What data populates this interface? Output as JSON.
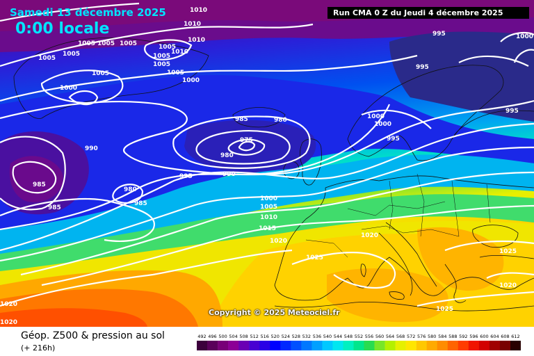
{
  "header": {
    "date": "Samedi 13 décembre 2025",
    "time": "0:00 locale",
    "run": "Run CMA 0 Z du Jeudi 4 décembre 2025"
  },
  "copyright": "Copyright © 2025 Meteociel.fr",
  "footer": {
    "title": "Géop. Z500 & pression au sol",
    "subtitle": "(+ 216h)"
  },
  "colorbar": {
    "ticks": [
      "492",
      "496",
      "500",
      "504",
      "508",
      "512",
      "516",
      "520",
      "524",
      "528",
      "532",
      "536",
      "540",
      "544",
      "548",
      "552",
      "556",
      "560",
      "564",
      "568",
      "572",
      "576",
      "580",
      "584",
      "588",
      "592",
      "596",
      "600",
      "604",
      "608",
      "612"
    ],
    "colors": [
      "#3c003c",
      "#5a005a",
      "#780078",
      "#8c0096",
      "#6a00b4",
      "#4800d2",
      "#2a00e6",
      "#0000ff",
      "#0028ff",
      "#0050ff",
      "#0078ff",
      "#00a0ff",
      "#00c8ff",
      "#00e6f0",
      "#00f0c0",
      "#00e68c",
      "#28dc50",
      "#78e628",
      "#b4f000",
      "#e6f000",
      "#ffe600",
      "#ffc800",
      "#ffaa00",
      "#ff8c00",
      "#ff6400",
      "#ff3c00",
      "#f01400",
      "#d20000",
      "#a00000",
      "#780000",
      "#280000"
    ]
  },
  "isobar_labels": [
    {
      "text": "1010"
    },
    {
      "text": "1010"
    },
    {
      "text": "1010"
    },
    {
      "text": "1005"
    },
    {
      "text": "1005"
    },
    {
      "text": "1005"
    },
    {
      "text": "1005"
    },
    {
      "text": "1005"
    },
    {
      "text": "1005"
    },
    {
      "text": "1010"
    },
    {
      "text": "1005"
    },
    {
      "text": "1005"
    },
    {
      "text": "1005"
    },
    {
      "text": "1000"
    },
    {
      "text": "1005"
    },
    {
      "text": "1000"
    },
    {
      "text": "995"
    },
    {
      "text": "1000"
    },
    {
      "text": "995"
    },
    {
      "text": "995"
    },
    {
      "text": "985"
    },
    {
      "text": "980"
    },
    {
      "text": "975"
    },
    {
      "text": "980"
    },
    {
      "text": "1000"
    },
    {
      "text": "1000"
    },
    {
      "text": "995"
    },
    {
      "text": "990"
    },
    {
      "text": "990"
    },
    {
      "text": "995"
    },
    {
      "text": "985"
    },
    {
      "text": "985"
    },
    {
      "text": "980"
    },
    {
      "text": "985"
    },
    {
      "text": "1000"
    },
    {
      "text": "1005"
    },
    {
      "text": "1010"
    },
    {
      "text": "1015"
    },
    {
      "text": "1020"
    },
    {
      "text": "1020"
    },
    {
      "text": "1025"
    },
    {
      "text": "1025"
    },
    {
      "text": "1020"
    },
    {
      "text": "1025"
    },
    {
      "text": "1020"
    },
    {
      "text": "1020"
    }
  ]
}
